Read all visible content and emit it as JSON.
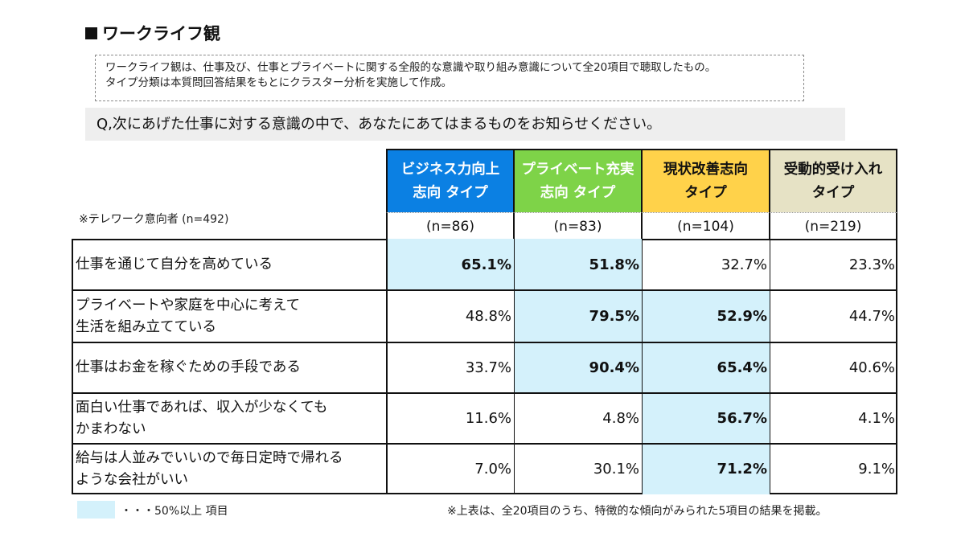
{
  "title": "ワークライフ観",
  "description": {
    "line1": "ワークライフ観は、仕事及び、仕事とプライベートに関する全般的な意識や取り組み意識について全20項目で聴取したもの。",
    "line2": "タイプ分類は本質問回答結果をもとにクラスター分析を実施して作成。"
  },
  "question": "Q,次にあげた仕事に対する意識の中で、あなたにあてはまるものをお知らせください。",
  "respondent_note": "※テレワーク意向者 (n=492)",
  "columns": [
    {
      "line1": "ビジネス力向上",
      "line2": "志向 タイプ",
      "n": "(n=86)",
      "color": "#0b80e3"
    },
    {
      "line1": "プライベート充実",
      "line2": "志向 タイプ",
      "n": "(n=83)",
      "color": "#7ed348"
    },
    {
      "line1": "現状改善志向",
      "line2": "タイプ",
      "n": "(n=104)",
      "color": "#ffd24a"
    },
    {
      "line1": "受動的受け入れ",
      "line2": "タイプ",
      "n": "(n=219)",
      "color": "#e6e2c5"
    }
  ],
  "rows": [
    {
      "line1": "仕事を通じて自分を高めている",
      "line2": "",
      "values": [
        "65.1%",
        "51.8%",
        "32.7%",
        "23.3%"
      ],
      "highlight": [
        true,
        true,
        false,
        false
      ]
    },
    {
      "line1": "プライベートや家庭を中心に考えて",
      "line2": "生活を組み立てている",
      "values": [
        "48.8%",
        "79.5%",
        "52.9%",
        "44.7%"
      ],
      "highlight": [
        false,
        true,
        true,
        false
      ]
    },
    {
      "line1": "仕事はお金を稼ぐための手段である",
      "line2": "",
      "values": [
        "33.7%",
        "90.4%",
        "65.4%",
        "40.6%"
      ],
      "highlight": [
        false,
        true,
        true,
        false
      ]
    },
    {
      "line1": "面白い仕事であれば、収入が少なくても",
      "line2": "かまわない",
      "values": [
        "11.6%",
        "4.8%",
        "56.7%",
        "4.1%"
      ],
      "highlight": [
        false,
        false,
        true,
        false
      ]
    },
    {
      "line1": "給与は人並みでいいので毎日定時で帰れる",
      "line2": "ような会社がいい",
      "values": [
        "7.0%",
        "30.1%",
        "71.2%",
        "9.1%"
      ],
      "highlight": [
        false,
        false,
        true,
        false
      ]
    }
  ],
  "legend": "・・・50%以上 項目",
  "footnote": "※上表は、全20項目のうち、特徴的な傾向がみられた5項目の結果を掲載。",
  "highlight_color": "#d4f1fb"
}
